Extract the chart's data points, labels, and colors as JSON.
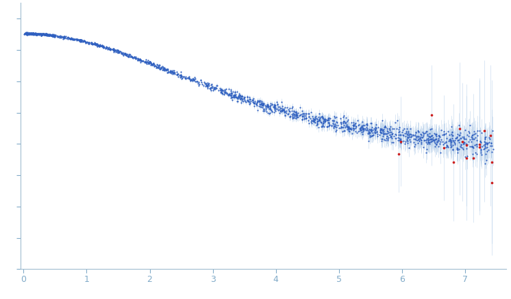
{
  "title": "",
  "xlabel": "",
  "ylabel": "",
  "xlim": [
    -0.05,
    7.65
  ],
  "ylim": [
    -0.6,
    1.1
  ],
  "x_ticks": [
    0,
    1,
    2,
    3,
    4,
    5,
    6,
    7
  ],
  "background_color": "#ffffff",
  "dot_color_blue": "#3060c0",
  "dot_color_red": "#cc2020",
  "errorbar_color": "#b0cce8",
  "axis_color": "#a0bcd0",
  "tick_color": "#80aac8",
  "n_blue": 1800,
  "n_red": 18,
  "seed": 77
}
